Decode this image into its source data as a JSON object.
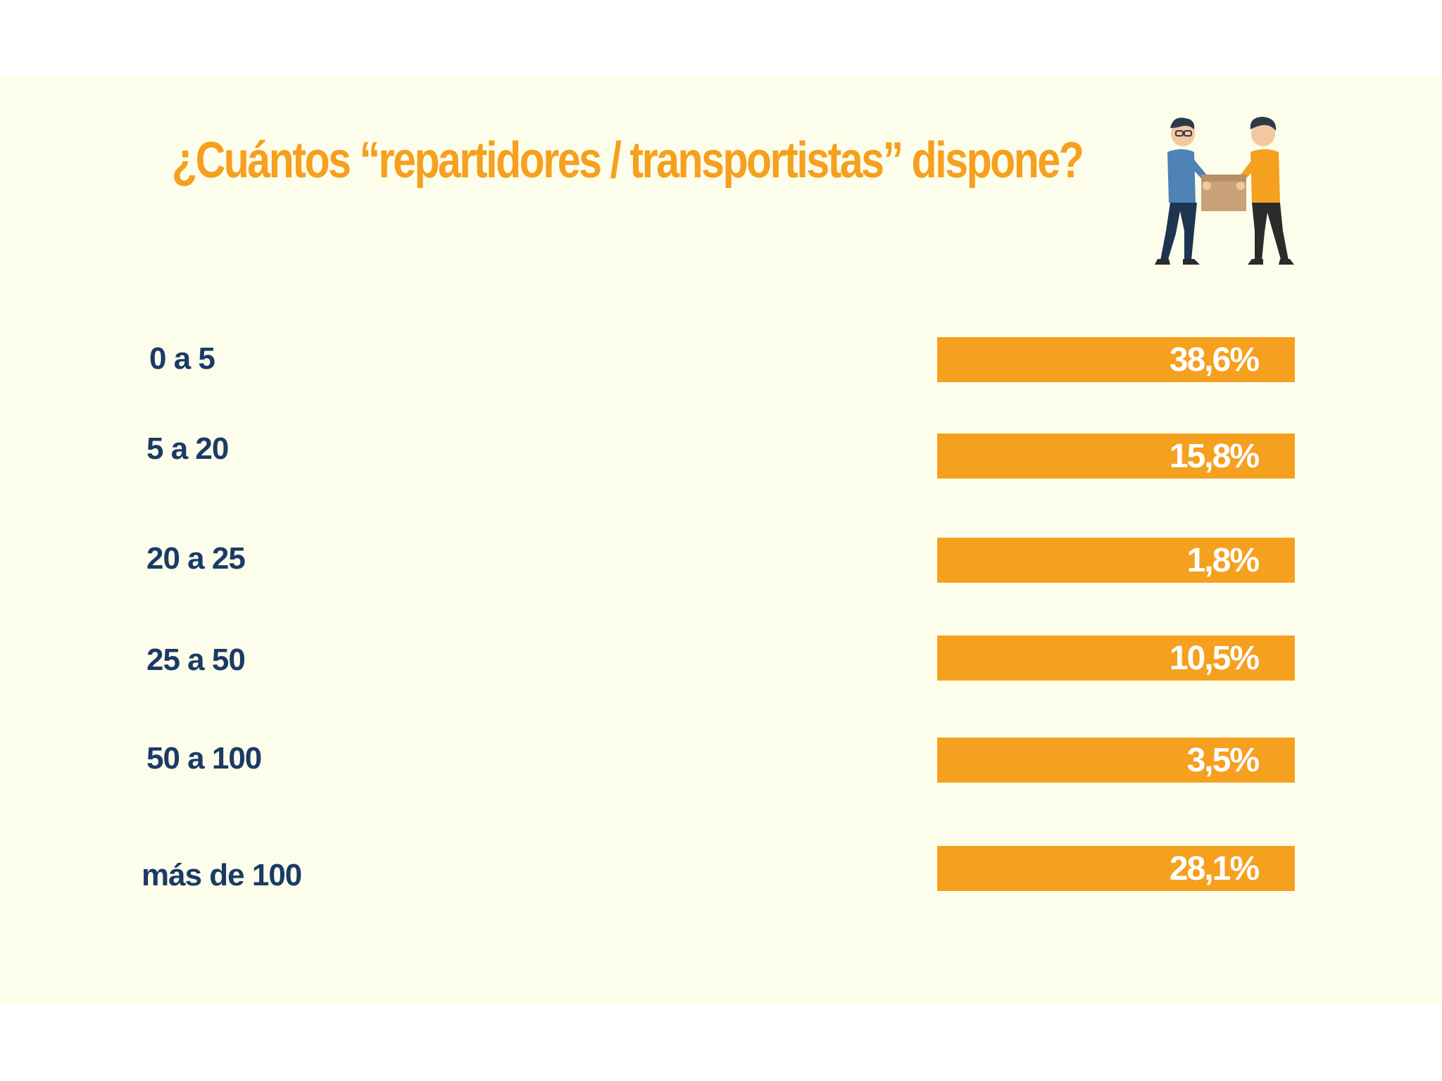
{
  "colors": {
    "accent": "#f5a01f",
    "label": "#1b3a66",
    "slide_bg": "#fdfdeb"
  },
  "illustration": {
    "icon": "two-people-carrying-box-icon"
  },
  "chart_data": {
    "type": "bar",
    "orientation": "horizontal",
    "title": "¿Cuántos “repartidores / transportistas” dispone?",
    "categories": [
      "0 a 5",
      "5 a 20",
      "20 a 25",
      "25 a 50",
      "50 a 100",
      "más de 100"
    ],
    "values": [
      38.6,
      15.8,
      1.8,
      10.5,
      3.5,
      28.1
    ],
    "value_labels": [
      "38,6%",
      "15,8%",
      "1,8%",
      "10,5%",
      "3,5%",
      "28,1%"
    ],
    "unit": "%",
    "grid": false,
    "legend": "none"
  }
}
